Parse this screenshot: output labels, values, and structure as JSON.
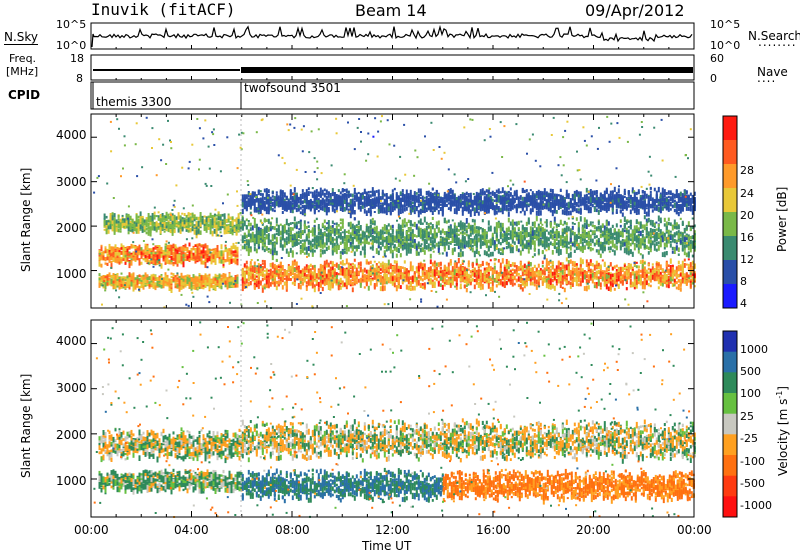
{
  "header": {
    "station": "Inuvik (fitACF)",
    "beam": "Beam 14",
    "date": "09/Apr/2012"
  },
  "noise_panel": {
    "left_label": "N.Sky",
    "left_ticks": [
      "10^5",
      "10^0"
    ],
    "right_ticks": [
      "10^5",
      "10^0"
    ],
    "right_label": "N.Search",
    "right_legend": "........"
  },
  "freq_panel": {
    "left_label_line1": "Freq.",
    "left_label_line2": "[MHz]",
    "left_ticks": [
      "18",
      "8"
    ],
    "right_ticks": [
      "60",
      "0"
    ],
    "right_label": "Nave",
    "right_legend": "....",
    "freq_value_mhz": 10.5
  },
  "cpid_panel": {
    "label": "CPID",
    "programs": [
      {
        "name": "themis 3300",
        "start_hour": 0
      },
      {
        "name": "twofsound 3501",
        "start_hour": 6
      }
    ]
  },
  "power_panel": {
    "ylabel": "Slant Range [km]",
    "yticks": [
      "4000",
      "3000",
      "2000",
      "1000"
    ],
    "colorbar_label": "Power [dB]",
    "colorbar_ticks": [
      "28",
      "24",
      "20",
      "16",
      "12",
      "8",
      "4"
    ],
    "colors": [
      "#1a1aff",
      "#2a4fa8",
      "#3a8a70",
      "#7ab848",
      "#e8c838",
      "#ff9a2a",
      "#ff5a20",
      "#ff1a10"
    ]
  },
  "velocity_panel": {
    "ylabel": "Slant Range [km]",
    "yticks": [
      "4000",
      "3000",
      "2000",
      "1000"
    ],
    "colorbar_label": "Velocity [m s",
    "colorbar_sup": "-1",
    "colorbar_label_end": "]",
    "colorbar_ticks": [
      "1000",
      "500",
      "100",
      "25",
      "-25",
      "-100",
      "-500",
      "-1000"
    ],
    "colors": [
      "#2030b0",
      "#2a70a8",
      "#2e8a5a",
      "#66c040",
      "#c8c8c0",
      "#ffa020",
      "#ff7010",
      "#ff3a10",
      "#ff1010"
    ]
  },
  "x_axis": {
    "tick_labels": [
      "00:00",
      "04:00",
      "08:00",
      "12:00",
      "16:00",
      "20:00",
      "00:00"
    ],
    "label": "Time UT"
  },
  "chart_data": {
    "type": "heatmap",
    "x_range_hours": [
      0,
      24
    ],
    "y_range_km": [
      180,
      4500
    ],
    "power_bands": [
      {
        "start_hour": 0.3,
        "end_hour": 5.8,
        "center_km": 1400,
        "width_km": 250,
        "db": 28
      },
      {
        "start_hour": 0.3,
        "end_hour": 5.8,
        "center_km": 800,
        "width_km": 180,
        "db": 24
      },
      {
        "start_hour": 0.5,
        "end_hour": 6.0,
        "center_km": 2100,
        "width_km": 250,
        "db": 18
      },
      {
        "start_hour": 6.0,
        "end_hour": 24.0,
        "center_km": 950,
        "width_km": 350,
        "db": 28
      },
      {
        "start_hour": 6.0,
        "end_hour": 24.0,
        "center_km": 1800,
        "width_km": 450,
        "db": 14
      },
      {
        "start_hour": 6.0,
        "end_hour": 24.0,
        "center_km": 2600,
        "width_km": 300,
        "db": 8
      }
    ],
    "velocity_bands": [
      {
        "start_hour": 0.3,
        "end_hour": 6.0,
        "center_km": 1800,
        "width_km": 350,
        "mps": 0
      },
      {
        "start_hour": 0.3,
        "end_hour": 6.0,
        "center_km": 1000,
        "width_km": 250,
        "mps": 80
      },
      {
        "start_hour": 6.0,
        "end_hour": 14.0,
        "center_km": 900,
        "width_km": 350,
        "mps": 300
      },
      {
        "start_hour": 14.0,
        "end_hour": 24.0,
        "center_km": 900,
        "width_km": 350,
        "mps": -200
      },
      {
        "start_hour": 6.0,
        "end_hour": 24.0,
        "center_km": 1900,
        "width_km": 450,
        "mps": 0
      }
    ]
  }
}
